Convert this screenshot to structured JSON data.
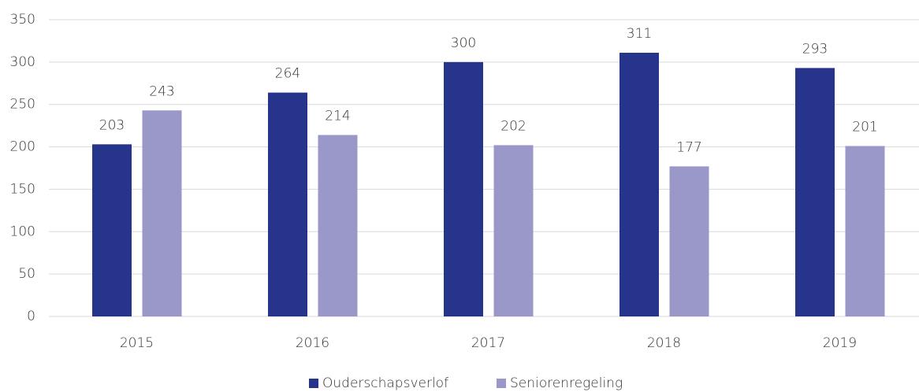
{
  "chart_data": {
    "type": "bar",
    "categories": [
      "2015",
      "2016",
      "2017",
      "2018",
      "2019"
    ],
    "series": [
      {
        "name": "Ouderschapsverlof",
        "color": "#26348b",
        "values": [
          203,
          264,
          300,
          311,
          293
        ]
      },
      {
        "name": "Seniorenregeling",
        "color": "#9a98c9",
        "values": [
          243,
          214,
          202,
          177,
          201
        ]
      }
    ],
    "ylim": [
      0,
      350
    ],
    "yticks": [
      0,
      50,
      100,
      150,
      200,
      250,
      300,
      350
    ],
    "grid": true,
    "legend": "bottom"
  }
}
